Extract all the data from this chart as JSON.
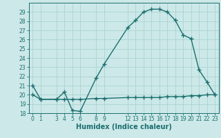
{
  "title": "",
  "xlabel": "Humidex (Indice chaleur)",
  "bg_color": "#cce8e8",
  "grid_color": "#aad4d0",
  "line_color": "#1a6e6e",
  "ylim": [
    18,
    30
  ],
  "xlim": [
    -0.5,
    23.5
  ],
  "yticks": [
    18,
    19,
    20,
    21,
    22,
    23,
    24,
    25,
    26,
    27,
    28,
    29
  ],
  "xticks": [
    0,
    1,
    3,
    4,
    5,
    6,
    8,
    9,
    12,
    13,
    14,
    15,
    16,
    17,
    18,
    19,
    20,
    21,
    22,
    23
  ],
  "humidex_x": [
    0,
    1,
    3,
    4,
    5,
    6,
    8,
    9,
    12,
    13,
    14,
    15,
    16,
    17,
    18,
    19,
    20,
    21,
    22,
    23
  ],
  "humidex_y": [
    21.0,
    19.5,
    19.5,
    20.3,
    18.3,
    18.2,
    21.8,
    23.3,
    27.3,
    28.1,
    29.0,
    29.3,
    29.3,
    29.0,
    28.1,
    26.5,
    26.1,
    22.7,
    21.4,
    20.0
  ],
  "flat_x": [
    0,
    1,
    3,
    4,
    5,
    6,
    8,
    9,
    12,
    13,
    14,
    15,
    16,
    17,
    18,
    19,
    20,
    21,
    22,
    23
  ],
  "flat_y": [
    20.0,
    19.5,
    19.5,
    19.5,
    19.5,
    19.5,
    19.6,
    19.6,
    19.7,
    19.7,
    19.7,
    19.7,
    19.7,
    19.8,
    19.8,
    19.8,
    19.9,
    19.9,
    20.0,
    20.0
  ],
  "linewidth": 1.0,
  "markersize": 4,
  "tick_fontsize": 5.5,
  "label_fontsize": 7.0
}
